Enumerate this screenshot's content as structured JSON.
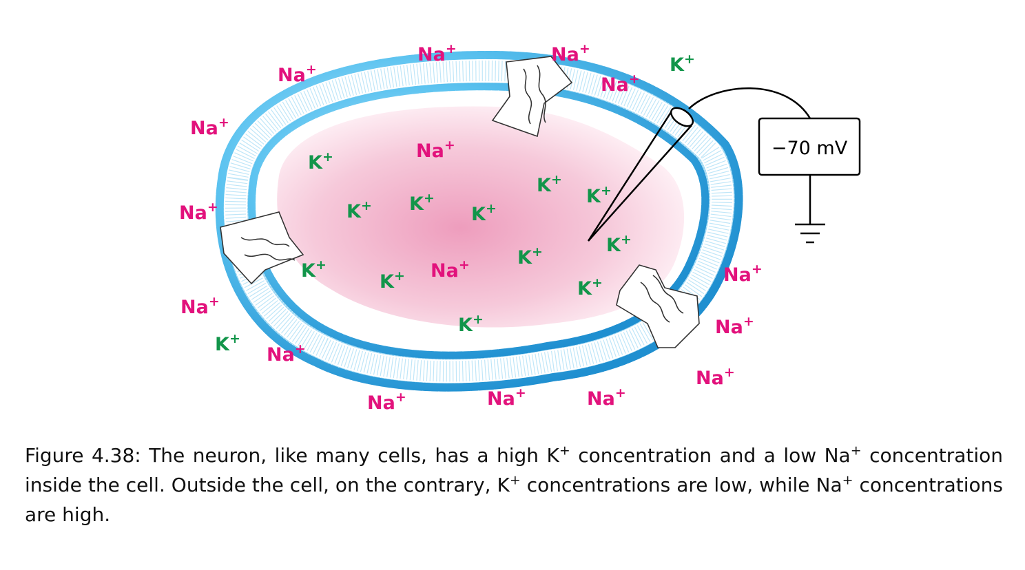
{
  "diagram": {
    "ions": {
      "na_label": "Na",
      "k_label": "K",
      "charge": "+"
    },
    "meter": {
      "reading": "−70 mV"
    },
    "colors": {
      "sodium": "#e2127c",
      "potassium": "#12954a",
      "membrane_head": "#3cb4ec",
      "membrane_tail": "#9fd8f3",
      "cytoplasm": "#f2a9c4"
    },
    "icons": [
      "membrane-bilayer",
      "ion-channel-protein",
      "microelectrode",
      "voltmeter",
      "ground-symbol"
    ]
  },
  "caption": {
    "label": "Figure 4.38:",
    "part1": "The neuron, like many cells, has a high K",
    "sup1": "+",
    "part2": "concentration and a low Na",
    "sup2": "+",
    "part3": "concentration inside the cell. Outside the cell, on the contrary, K",
    "sup3": "+",
    "part4": "concentrations are low, while Na",
    "sup4": "+",
    "part5": "concentrations are high."
  }
}
